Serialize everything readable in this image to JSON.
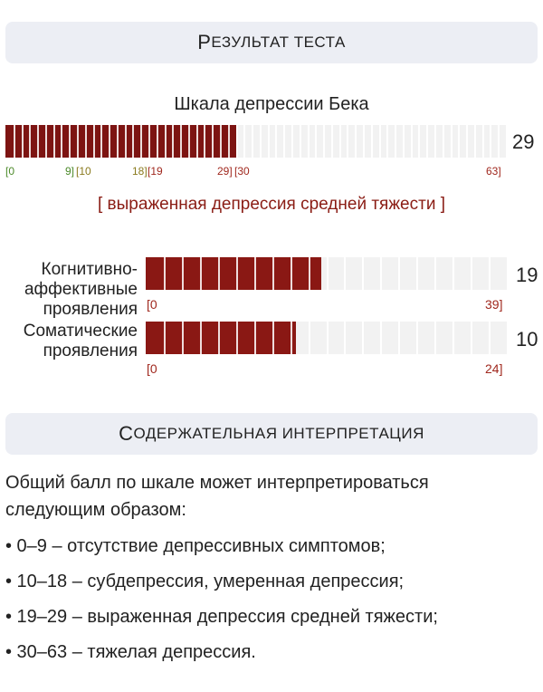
{
  "header_result": {
    "first": "Р",
    "rest": "езультат теста"
  },
  "main_scale": {
    "title": "Шкала депрессии Бека",
    "value": "29",
    "value_num": 29,
    "max": 63,
    "ticks": [
      {
        "text": "[0",
        "color": "#4c8a2a"
      },
      {
        "text": "9]",
        "color": "#4c8a2a"
      },
      {
        "text": "[10",
        "color": "#8a7a1e"
      },
      {
        "text": "18]",
        "color": "#8a7a1e"
      },
      {
        "text": "[19",
        "color": "#a0281e"
      },
      {
        "text": "29]",
        "color": "#a0281e"
      },
      {
        "text": "[30",
        "color": "#a0281e"
      },
      {
        "text": "63]",
        "color": "#a0281e"
      }
    ],
    "result": "[ выраженная депрессия средней тяжести ]"
  },
  "subscales": [
    {
      "label_lines": [
        "Когнитивно-",
        "аффективные",
        "проявления"
      ],
      "value": "19",
      "value_num": 19,
      "min_label": "[0",
      "max_label": "39]",
      "max": 39
    },
    {
      "label_lines": [
        "Соматические",
        "проявления"
      ],
      "value": "10",
      "value_num": 10,
      "min_label": "[0",
      "max_label": "24]",
      "max": 24
    }
  ],
  "header_interp": {
    "first": "С",
    "rest": "одержательная интерпретация"
  },
  "interpretation": {
    "intro": "Общий балл по шкале может интерпретироваться следующим образом:",
    "items": [
      "• 0–9 – отсутствие депрессивных симптомов;",
      "• 10–18 – субдепрессия, умеренная депрессия;",
      "• 19–29 – выраженная депрессия средней тяжести;",
      "• 30–63 – тяжелая депрессия."
    ]
  },
  "colors": {
    "bar_fill": "#7d1412",
    "bar_empty": "#f2f2f2",
    "header_bg": "#eceef4",
    "range_normal": "#4c8a2a",
    "range_mild": "#8a7a1e",
    "range_high": "#a0281e"
  }
}
